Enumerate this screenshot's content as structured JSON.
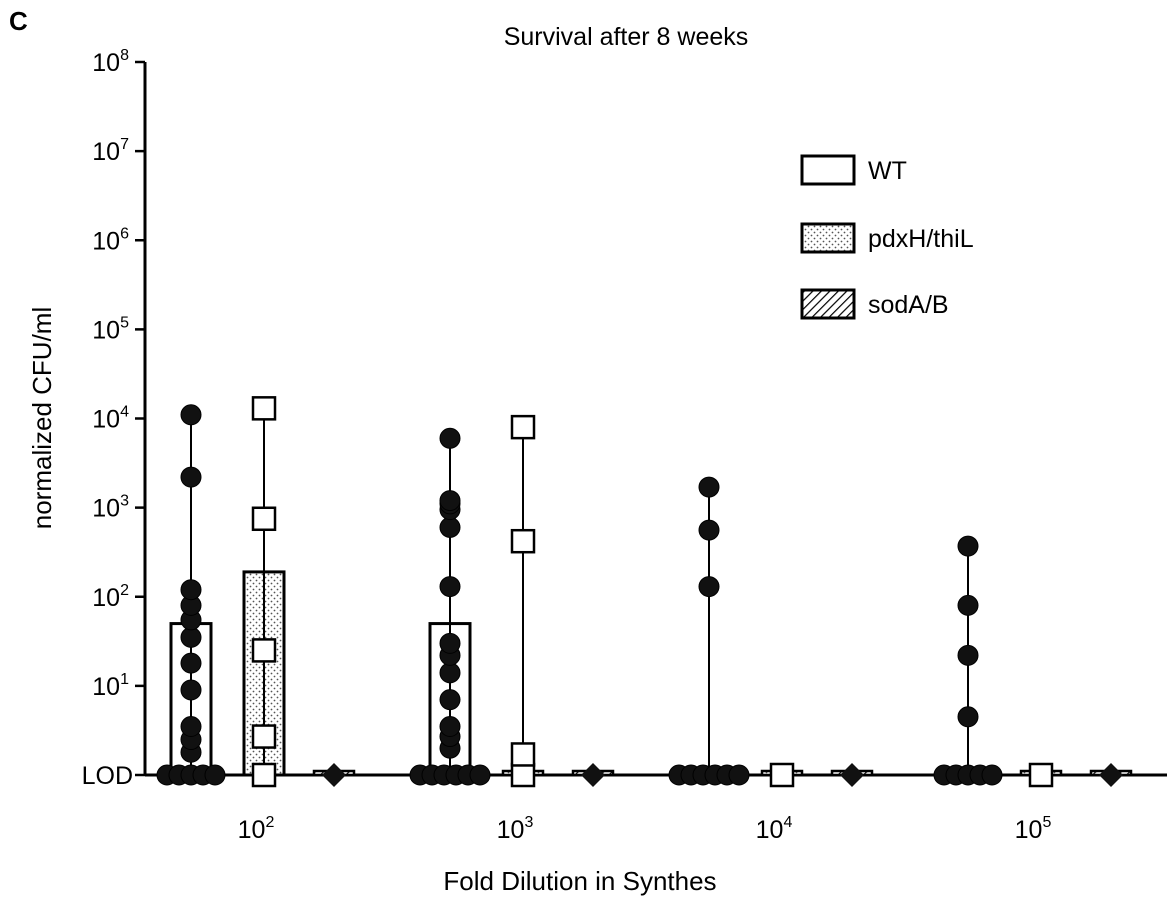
{
  "panel_label": "C",
  "chart_data": {
    "type": "bar",
    "title": "Survival after 8 weeks",
    "xlabel": "Fold Dilution in Synthes",
    "ylabel": "normalized CFU/ml",
    "yscale": "log",
    "ylim": [
      1,
      100000000
    ],
    "y_ticks": [
      {
        "value": 1,
        "label": "LOD"
      },
      {
        "value": 10,
        "base": "10",
        "exp": "1"
      },
      {
        "value": 100,
        "base": "10",
        "exp": "2"
      },
      {
        "value": 1000,
        "base": "10",
        "exp": "3"
      },
      {
        "value": 10000,
        "base": "10",
        "exp": "4"
      },
      {
        "value": 100000,
        "base": "10",
        "exp": "5"
      },
      {
        "value": 1000000,
        "base": "10",
        "exp": "6"
      },
      {
        "value": 10000000,
        "base": "10",
        "exp": "7"
      },
      {
        "value": 100000000,
        "base": "10",
        "exp": "8"
      }
    ],
    "categories": [
      {
        "base": "10",
        "exp": "2"
      },
      {
        "base": "10",
        "exp": "3"
      },
      {
        "base": "10",
        "exp": "4"
      },
      {
        "base": "10",
        "exp": "5"
      }
    ],
    "legend_position": "top-right",
    "series": [
      {
        "name": "WT",
        "fill": "open",
        "marker": "circle",
        "bar_values": [
          50,
          50,
          1,
          1
        ],
        "points": [
          [
            1,
            1,
            1,
            1,
            1,
            1.8,
            2.5,
            3.5,
            9,
            18,
            35,
            55,
            80,
            120,
            2200,
            11000
          ],
          [
            1,
            1,
            1,
            1,
            1,
            1,
            2,
            2.7,
            3.5,
            7,
            14,
            22,
            30,
            130,
            600,
            950,
            1100,
            1200,
            6000
          ],
          [
            1,
            1,
            1,
            1,
            1,
            1,
            130,
            560,
            1700
          ],
          [
            1,
            1,
            1,
            1,
            1,
            4.5,
            22,
            80,
            370
          ]
        ]
      },
      {
        "name": "pdxH/thiL",
        "fill": "dotted",
        "marker": "square",
        "bar_values": [
          190,
          1,
          1,
          1
        ],
        "points": [
          [
            1,
            2.7,
            25,
            750,
            13000
          ],
          [
            1,
            1.7,
            420,
            8000
          ],
          [
            1
          ],
          [
            1
          ]
        ]
      },
      {
        "name": "sodA/B",
        "fill": "hatched",
        "marker": "diamond",
        "bar_values": [
          1,
          1,
          1,
          1
        ],
        "points": [
          [
            1
          ],
          [
            1
          ],
          [
            1
          ],
          [
            1
          ]
        ]
      }
    ]
  }
}
